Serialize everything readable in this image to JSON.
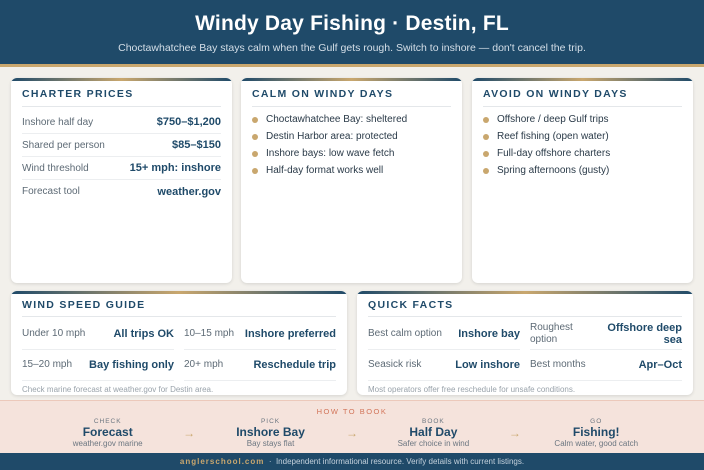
{
  "header": {
    "title": "Windy Day Fishing · Destin, FL",
    "subtitle": "Choctawhatchee Bay stays calm when the Gulf gets rough. Switch to inshore — don't cancel the trip."
  },
  "prices": {
    "title": "CHARTER PRICES",
    "rows": [
      {
        "k": "Inshore half day",
        "v": "$750–$1,200"
      },
      {
        "k": "Shared per person",
        "v": "$85–$150"
      },
      {
        "k": "Wind threshold",
        "v": "15+ mph: inshore"
      },
      {
        "k": "Forecast tool",
        "v": "weather.gov"
      }
    ]
  },
  "calm": {
    "title": "CALM ON WINDY DAYS",
    "items": [
      "Choctawhatchee Bay: sheltered",
      "Destin Harbor area: protected",
      "Inshore bays: low wave fetch",
      "Half-day format works well"
    ]
  },
  "avoid": {
    "title": "AVOID ON WINDY DAYS",
    "items": [
      "Offshore / deep Gulf trips",
      "Reef fishing (open water)",
      "Full-day offshore charters",
      "Spring afternoons (gusty)"
    ]
  },
  "wind": {
    "title": "WIND SPEED GUIDE",
    "cells": [
      {
        "k": "Under 10 mph",
        "v": "All trips OK"
      },
      {
        "k": "10–15 mph",
        "v": "Inshore preferred"
      },
      {
        "k": "15–20 mph",
        "v": "Bay fishing only"
      },
      {
        "k": "20+ mph",
        "v": "Reschedule trip"
      }
    ],
    "note": "Check marine forecast at weather.gov for Destin area."
  },
  "facts": {
    "title": "QUICK FACTS",
    "cells": [
      {
        "k": "Best calm option",
        "v": "Inshore bay"
      },
      {
        "k": "Roughest option",
        "v": "Offshore deep sea"
      },
      {
        "k": "Seasick risk",
        "v": "Low inshore"
      },
      {
        "k": "Best months",
        "v": "Apr–Oct"
      }
    ],
    "note": "Most operators offer free reschedule for unsafe conditions."
  },
  "book": {
    "title": "HOW TO BOOK",
    "steps": [
      {
        "s": "CHECK",
        "m": "Forecast",
        "d": "weather.gov marine"
      },
      {
        "s": "PICK",
        "m": "Inshore Bay",
        "d": "Bay stays flat"
      },
      {
        "s": "BOOK",
        "m": "Half Day",
        "d": "Safer choice in wind"
      },
      {
        "s": "GO",
        "m": "Fishing!",
        "d": "Calm water, good catch"
      }
    ],
    "arrow": "→"
  },
  "footer": {
    "brand": "anglerschool.com",
    "sep": "·",
    "text": "Independent informational resource. Verify details with current listings."
  }
}
